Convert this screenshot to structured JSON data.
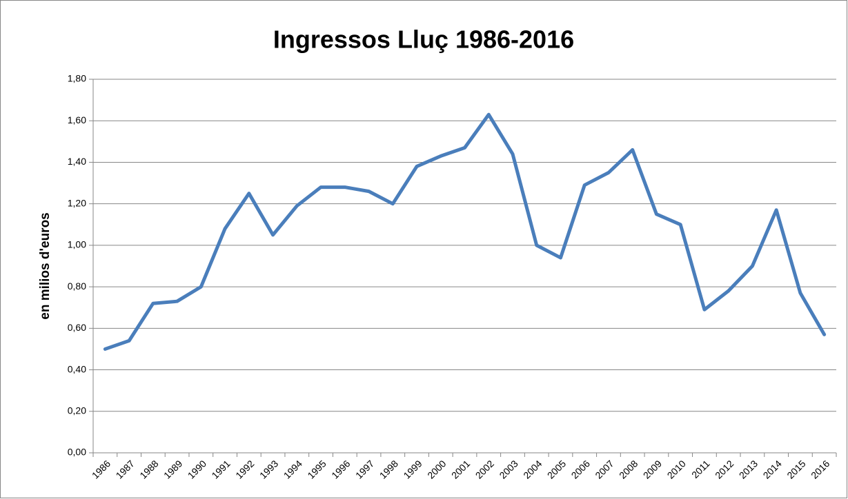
{
  "chart_data": {
    "type": "line",
    "title": "Ingressos Lluç 1986-2016",
    "y_label": "en milios d'euros",
    "categories": [
      "1986",
      "1987",
      "1988",
      "1989",
      "1990",
      "1991",
      "1992",
      "1993",
      "1994",
      "1995",
      "1996",
      "1997",
      "1998",
      "1999",
      "2000",
      "2001",
      "2002",
      "2003",
      "2004",
      "2005",
      "2006",
      "2007",
      "2008",
      "2009",
      "2010",
      "2011",
      "2012",
      "2013",
      "2014",
      "2015",
      "2016"
    ],
    "series": [
      {
        "name": "Ingressos",
        "color": "#4a7ebb",
        "values": [
          0.5,
          0.54,
          0.72,
          0.73,
          0.8,
          1.08,
          1.25,
          1.05,
          1.19,
          1.28,
          1.28,
          1.26,
          1.2,
          1.38,
          1.43,
          1.47,
          1.63,
          1.44,
          1.0,
          0.94,
          1.29,
          1.35,
          1.46,
          1.15,
          1.1,
          0.69,
          0.78,
          0.9,
          1.17,
          0.77,
          0.57
        ]
      }
    ],
    "ylim": [
      0,
      1.8
    ],
    "yticks": [
      {
        "value": 0,
        "label": "0,00"
      },
      {
        "value": 0.2,
        "label": "0,20"
      },
      {
        "value": 0.4,
        "label": "0,40"
      },
      {
        "value": 0.6,
        "label": "0,60"
      },
      {
        "value": 0.8,
        "label": "0,80"
      },
      {
        "value": 1.0,
        "label": "1,00"
      },
      {
        "value": 1.2,
        "label": "1,20"
      },
      {
        "value": 1.4,
        "label": "1,40"
      },
      {
        "value": 1.6,
        "label": "1,60"
      },
      {
        "value": 1.8,
        "label": "1,80"
      }
    ],
    "grid": true
  }
}
